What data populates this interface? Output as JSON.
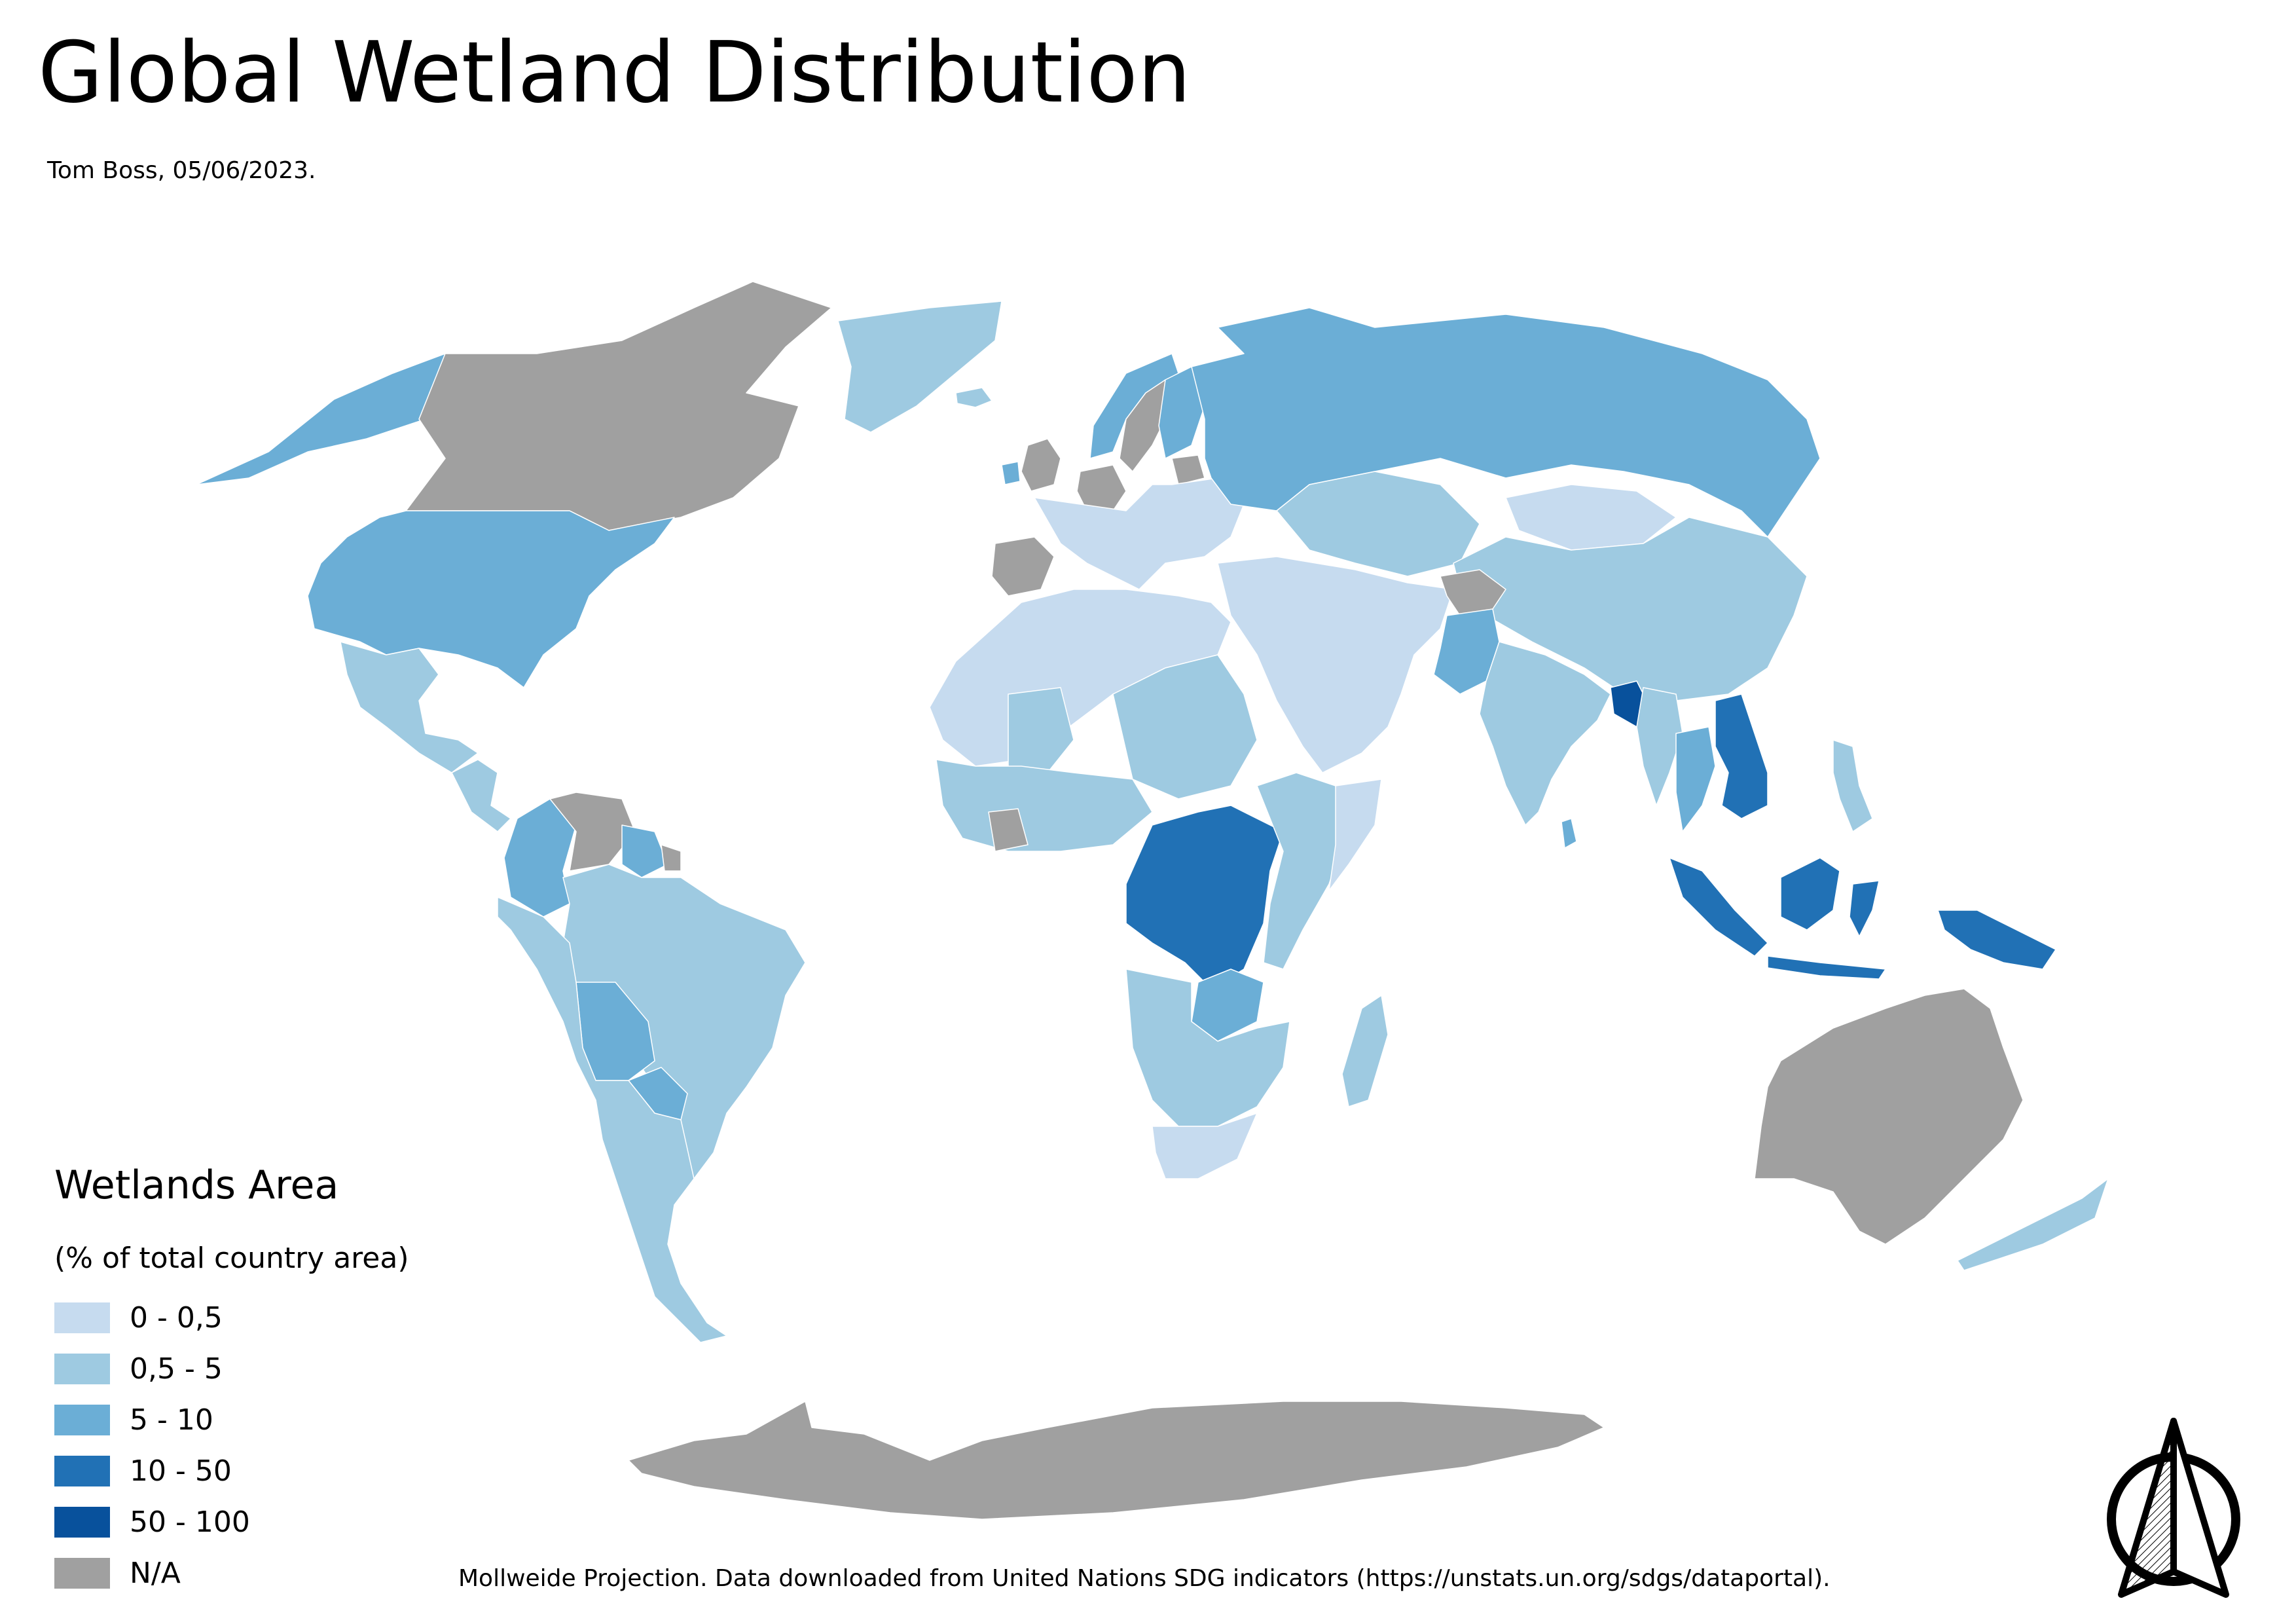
{
  "title": "Global Wetland Distribution",
  "subtitle": "Tom Boss, 05/06/2023.",
  "legend": {
    "title": "Wetlands Area",
    "subtitle": "(% of total country area)",
    "items": [
      {
        "label": "0 - 0,5",
        "color": "#c6dbef"
      },
      {
        "label": "0,5 - 5",
        "color": "#9ecae1"
      },
      {
        "label": "5 - 10",
        "color": "#6baed6"
      },
      {
        "label": "10 - 50",
        "color": "#2171b5"
      },
      {
        "label": "50 - 100",
        "color": "#08519c"
      },
      {
        "label": "N/A",
        "color": "#a0a0a0"
      }
    ]
  },
  "footer": "Mollweide Projection. Data downloaded from United Nations SDG indicators (https://unstats.un.org/sdgs/dataportal).",
  "map": {
    "projection": "Mollweide",
    "regions": [
      {
        "name": "Canada",
        "class": "N/A"
      },
      {
        "name": "Alaska",
        "class": "5 - 10"
      },
      {
        "name": "United States",
        "class": "5 - 10"
      },
      {
        "name": "Greenland",
        "class": "0,5 - 5"
      },
      {
        "name": "Mexico",
        "class": "0,5 - 5"
      },
      {
        "name": "Central America",
        "class": "0,5 - 5"
      },
      {
        "name": "Venezuela",
        "class": "N/A"
      },
      {
        "name": "Colombia",
        "class": "5 - 10"
      },
      {
        "name": "Guyana",
        "class": "5 - 10"
      },
      {
        "name": "Suriname",
        "class": "N/A"
      },
      {
        "name": "Brazil",
        "class": "0,5 - 5"
      },
      {
        "name": "Bolivia",
        "class": "5 - 10"
      },
      {
        "name": "Paraguay",
        "class": "5 - 10"
      },
      {
        "name": "Argentina / Chile",
        "class": "0,5 - 5"
      },
      {
        "name": "Iceland",
        "class": "0,5 - 5"
      },
      {
        "name": "Norway",
        "class": "5 - 10"
      },
      {
        "name": "Sweden",
        "class": "N/A"
      },
      {
        "name": "Finland",
        "class": "5 - 10"
      },
      {
        "name": "United Kingdom",
        "class": "N/A"
      },
      {
        "name": "Ireland",
        "class": "5 - 10"
      },
      {
        "name": "Germany",
        "class": "N/A"
      },
      {
        "name": "Belarus",
        "class": "N/A"
      },
      {
        "name": "Spain",
        "class": "N/A"
      },
      {
        "name": "Europe",
        "class": "0 - 0,5"
      },
      {
        "name": "Russia",
        "class": "5 - 10"
      },
      {
        "name": "Kazakhstan",
        "class": "0,5 - 5"
      },
      {
        "name": "Mongolia",
        "class": "0 - 0,5"
      },
      {
        "name": "China",
        "class": "0,5 - 5"
      },
      {
        "name": "Middle East",
        "class": "0 - 0,5"
      },
      {
        "name": "Afghanistan",
        "class": "N/A"
      },
      {
        "name": "Pakistan",
        "class": "5 - 10"
      },
      {
        "name": "India",
        "class": "0,5 - 5"
      },
      {
        "name": "Bangladesh",
        "class": "50 - 100"
      },
      {
        "name": "Myanmar",
        "class": "0,5 - 5"
      },
      {
        "name": "Thailand",
        "class": "5 - 10"
      },
      {
        "name": "Vietnam",
        "class": "10 - 50"
      },
      {
        "name": "Cambodia",
        "class": "10 - 50"
      },
      {
        "name": "Philippines",
        "class": "0,5 - 5"
      },
      {
        "name": "Sri Lanka",
        "class": "5 - 10"
      },
      {
        "name": "Sumatra",
        "class": "10 - 50"
      },
      {
        "name": "Java",
        "class": "10 - 50"
      },
      {
        "name": "Borneo",
        "class": "10 - 50"
      },
      {
        "name": "Sulawesi",
        "class": "10 - 50"
      },
      {
        "name": "New Guinea",
        "class": "10 - 50"
      },
      {
        "name": "North Africa",
        "class": "0 - 0,5"
      },
      {
        "name": "Mali",
        "class": "0,5 - 5"
      },
      {
        "name": "Sudan / Chad",
        "class": "0,5 - 5"
      },
      {
        "name": "Côte d'Ivoire",
        "class": "N/A"
      },
      {
        "name": "West Africa",
        "class": "0,5 - 5"
      },
      {
        "name": "DR Congo",
        "class": "10 - 50"
      },
      {
        "name": "Zambia",
        "class": "5 - 10"
      },
      {
        "name": "East Africa",
        "class": "0,5 - 5"
      },
      {
        "name": "Somalia",
        "class": "0 - 0,5"
      },
      {
        "name": "Southern Africa",
        "class": "0,5 - 5"
      },
      {
        "name": "South Africa",
        "class": "0 - 0,5"
      },
      {
        "name": "Madagascar",
        "class": "0,5 - 5"
      },
      {
        "name": "Australia",
        "class": "N/A"
      },
      {
        "name": "New Zealand",
        "class": "0,5 - 5"
      },
      {
        "name": "Antarctica",
        "class": "N/A"
      }
    ]
  }
}
